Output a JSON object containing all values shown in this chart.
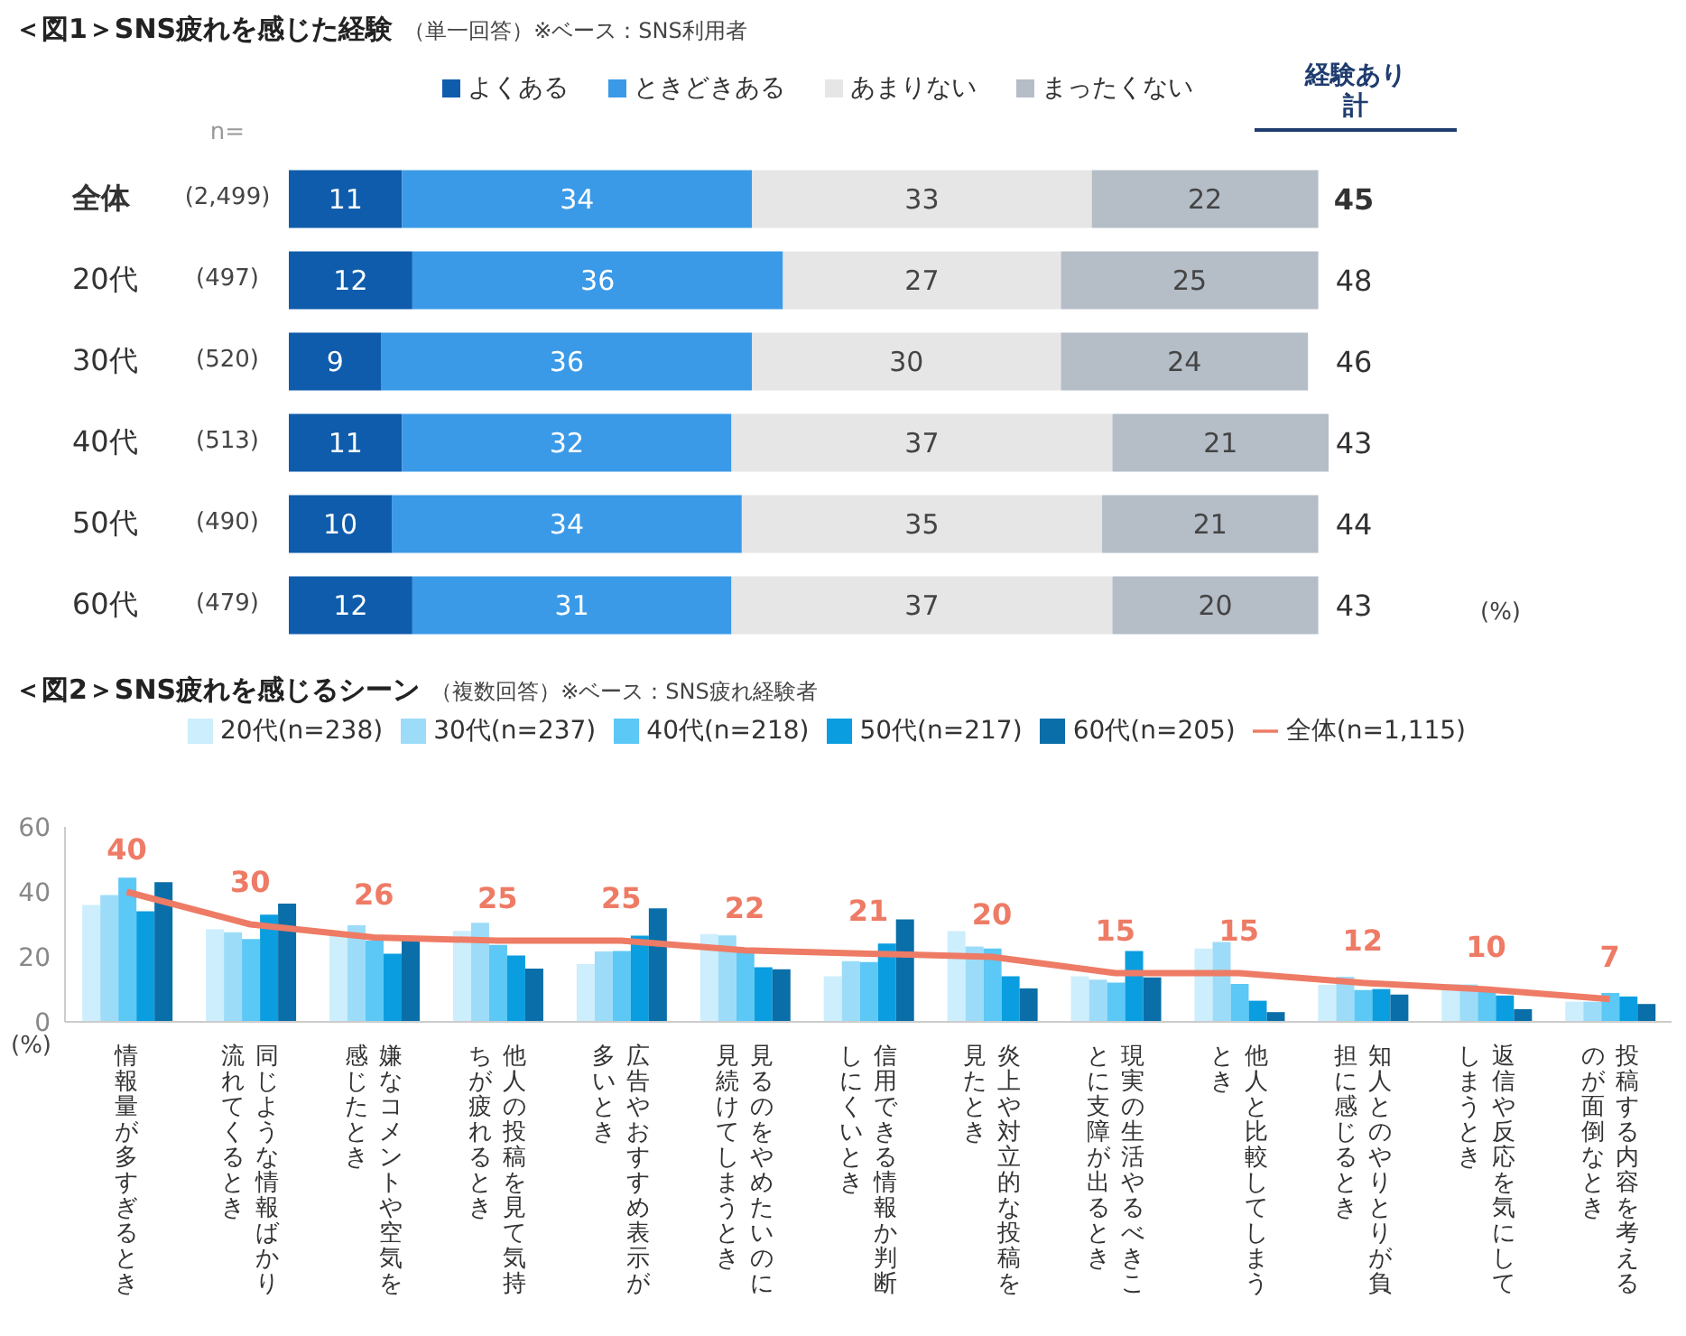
{
  "chart_data": [
    {
      "type": "bar",
      "orientation": "horizontal",
      "stacked": true,
      "data_labels": true,
      "legend": "top",
      "title": "＜図1＞SNS疲れを感じた経験",
      "subtitle": "（単一回答）※ベース：SNS利用者",
      "categories": [
        "全体",
        "20代",
        "30代",
        "40代",
        "50代",
        "60代"
      ],
      "series": [
        {
          "name": "よくある",
          "color": "#0f5cac",
          "values": [
            11,
            12,
            9,
            11,
            10,
            12
          ]
        },
        {
          "name": "ときどきある",
          "color": "#3a9ae8",
          "values": [
            34,
            36,
            36,
            32,
            34,
            31
          ]
        },
        {
          "name": "あまりない",
          "color": "#e6e6e6",
          "values": [
            33,
            27,
            30,
            37,
            35,
            37
          ]
        },
        {
          "name": "まったくない",
          "color": "#b5bdc7",
          "values": [
            22,
            25,
            24,
            21,
            21,
            20
          ]
        }
      ],
      "annotations": [
        "n=",
        "(2,499)",
        "(497)",
        "(520)",
        "(513)",
        "(490)",
        "(479)",
        "経験あり計",
        "45",
        "48",
        "46",
        "43",
        "44",
        "43",
        "(%)"
      ]
    },
    {
      "type": "bar",
      "legend": "top",
      "title": "＜図2＞SNS疲れを感じるシーン",
      "subtitle": "（複数回答）※ベース：SNS疲れ経験者",
      "ylabel": "(%)",
      "ylim": [
        0,
        60
      ],
      "yticks": [
        0,
        20,
        40,
        60
      ],
      "categories": [
        "情報量が多すぎるとき",
        "同じような情報ばかり流れてくるとき",
        "嫌なコメントや空気を感じたとき",
        "他人の投稿を見て気持ちが疲れるとき",
        "広告やおすすめ表示が多いとき",
        "見るのをやめたいのに見続けてしまうとき",
        "信用できる情報か判断しにくいとき",
        "炎上や対立的な投稿を見たとき",
        "現実の生活やるべきことに支障が出るとき",
        "他人と比較してしまうとき",
        "知人とのやりとりが負担に感じるとき",
        "返信や反応を気にしてしまうとき",
        "投稿する内容を考えるのが面倒なとき"
      ],
      "series": [
        {
          "name": "20代(n=238)",
          "color": "#cdeefc",
          "values": [
            36,
            28.5,
            26.5,
            28,
            17.8,
            27,
            14,
            27.9,
            14,
            22.6,
            11.4,
            11.7,
            6.2
          ]
        },
        {
          "name": "30代(n=237)",
          "color": "#9ddcf8",
          "values": [
            39,
            27.6,
            29.7,
            30.5,
            21.7,
            26.6,
            18.7,
            23.2,
            13,
            24.6,
            13.9,
            11.5,
            6.2
          ]
        },
        {
          "name": "40代(n=218)",
          "color": "#5bc8f5",
          "values": [
            44.4,
            25.5,
            25,
            23.7,
            21.8,
            21.8,
            18.4,
            22.6,
            12.1,
            11.7,
            9.8,
            9.3,
            8.9
          ]
        },
        {
          "name": "50代(n=217)",
          "color": "#0a9ee0",
          "values": [
            34,
            33,
            21,
            20.4,
            26.5,
            16.8,
            24.1,
            14,
            21.8,
            6.5,
            10.1,
            8.1,
            7.8
          ]
        },
        {
          "name": "60代(n=205)",
          "color": "#0a6ea8",
          "values": [
            43,
            36.4,
            25,
            16.4,
            34.9,
            16.2,
            31.5,
            10.3,
            13.7,
            3,
            8.4,
            3.9,
            5.5
          ]
        },
        {
          "name": "全体(n=1,115)",
          "type": "line",
          "color": "#ee7b65",
          "values": [
            40,
            30,
            26,
            25,
            25,
            22,
            21,
            20,
            15,
            15,
            12,
            10,
            7
          ],
          "value_labels": [
            "40",
            "30",
            "26",
            "25",
            "25",
            "22",
            "21",
            "20",
            "15",
            "15",
            "12",
            "10",
            "7"
          ]
        }
      ]
    }
  ]
}
